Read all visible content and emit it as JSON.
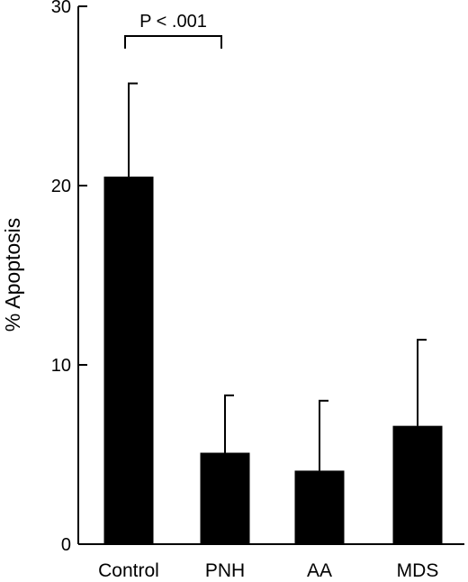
{
  "chart_data": {
    "type": "bar",
    "title": "",
    "xlabel": "",
    "ylabel": "% Apoptosis",
    "ylim": [
      0,
      30
    ],
    "yticks": [
      0,
      10,
      20,
      30
    ],
    "categories": [
      "Control",
      "PNH",
      "AA",
      "MDS"
    ],
    "values": [
      20.5,
      5.1,
      4.1,
      6.6
    ],
    "error_upper": [
      25.7,
      8.3,
      8.0,
      11.4
    ],
    "bar_color": "#000000",
    "grid": false,
    "annotation": {
      "text": "P < .001",
      "from_category": "Control",
      "to_category": "PNH"
    }
  }
}
